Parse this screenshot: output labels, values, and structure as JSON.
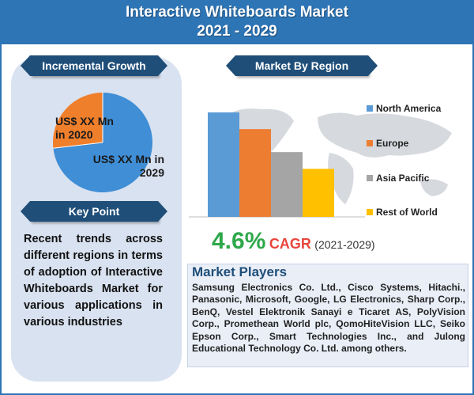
{
  "header": {
    "title_line1": "Interactive Whiteboards Market",
    "title_line2": "2021 - 2029"
  },
  "incremental_growth": {
    "banner": "Incremental Growth",
    "label_2020": "US$ XX Mn in 2020",
    "label_2020_line1": "US$ XX Mn",
    "label_2020_line2": "in 2020",
    "label_2029_line1": "US$ XX Mn in",
    "label_2029_line2": "2029",
    "colors": {
      "orange": "#f07f2c",
      "blue": "#3f8ed6"
    }
  },
  "key_point": {
    "banner": "Key Point",
    "text": "Recent trends across different regions in terms of adoption of Interactive Whiteboards Market for various applications in various industries"
  },
  "market_by_region": {
    "banner": "Market By Region"
  },
  "chart_data": {
    "type": "bar",
    "categories": [
      "North America",
      "Europe",
      "Asia Pacific",
      "Rest of World"
    ],
    "values": [
      100,
      84,
      62,
      46
    ],
    "colors": [
      "#5b9bd5",
      "#ed7d31",
      "#a5a5a5",
      "#ffc000"
    ],
    "legend_position": "right",
    "grid": false
  },
  "cagr": {
    "percent": "4.6%",
    "label": "CAGR",
    "period": "(2021-2029)"
  },
  "market_players": {
    "title": "Market Players",
    "text": "Samsung Electronics Co. Ltd., Cisco Systems, Hitachi., Panasonic, Microsoft, Google, LG Electronics, Sharp Corp., BenQ, Vestel Elektronik Sanayi e Ticaret AS, PolyVision Corp., Promethean World plc, QomoHiteVision LLC, Seiko Epson Corp., Smart Technologies Inc., and Julong Educational Technology Co. Ltd. among others."
  }
}
